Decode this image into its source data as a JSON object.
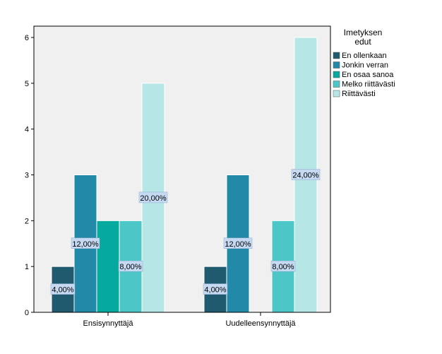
{
  "chart_data": {
    "type": "bar",
    "categories": [
      "Ensisynnyttäjä",
      "Uudelleensynnyttäjä"
    ],
    "ylim": [
      0,
      6
    ],
    "yticks": [
      0,
      1,
      2,
      3,
      4,
      5,
      6
    ],
    "grid": false,
    "legend_placement": "right",
    "legend_title": [
      "Imetyksen",
      "edut"
    ],
    "series": [
      {
        "name": "En ollenkaan",
        "color": "#1f5a6e",
        "values": [
          1,
          1
        ],
        "labels": [
          "4,00%",
          "4,00%"
        ]
      },
      {
        "name": "Jonkin verran",
        "color": "#2389a8",
        "values": [
          3,
          3
        ],
        "labels": [
          "12,00%",
          "12,00%"
        ]
      },
      {
        "name": "En osaa sanoa",
        "color": "#06a99d",
        "values": [
          2,
          0
        ],
        "labels": [
          "",
          ""
        ]
      },
      {
        "name": "Melko riittävästi",
        "color": "#4cc6c6",
        "values": [
          2,
          2
        ],
        "labels": [
          "8,00%",
          "8,00%"
        ]
      },
      {
        "name": "Riittävästi",
        "color": "#b6e6e6",
        "values": [
          5,
          6
        ],
        "labels": [
          "20,00%",
          "24,00%"
        ]
      }
    ]
  }
}
